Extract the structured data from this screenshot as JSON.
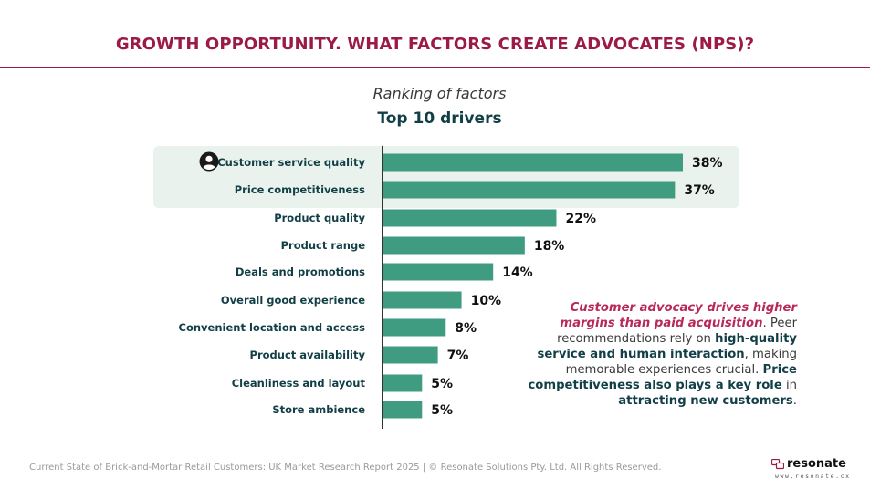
{
  "header": {
    "title": "GROWTH OPPORTUNITY. WHAT FACTORS CREATE ADVOCATES (NPS)?"
  },
  "chart_data": {
    "type": "bar",
    "orientation": "horizontal",
    "subtitle": "Ranking of factors",
    "title": "Top 10 drivers",
    "categories": [
      "Customer service quality",
      "Price competitiveness",
      "Product quality",
      "Product range",
      "Deals and promotions",
      "Overall good experience",
      "Convenient location and access",
      "Product availability",
      "Cleanliness and layout",
      "Store ambience"
    ],
    "values": [
      38,
      37,
      22,
      18,
      14,
      10,
      8,
      7,
      5,
      5
    ],
    "value_labels": [
      "38%",
      "37%",
      "22%",
      "18%",
      "14%",
      "10%",
      "8%",
      "7%",
      "5%",
      "5%"
    ],
    "unit": "%",
    "xlim": [
      0,
      38
    ],
    "highlighted_categories": [
      "Customer service quality",
      "Price competitiveness"
    ],
    "bar_color": "#3f9c80",
    "highlight_color": "#e9f2ec",
    "icon": "person-icon",
    "grid": false,
    "legend": "none"
  },
  "callout": {
    "emphasis": "Customer advocacy drives higher margins than paid acquisition",
    "t1": ". Peer recommendations ",
    "t2": "rely on ",
    "b2": "high-quality service and human interaction",
    "t3": ", making memorable experiences crucial. ",
    "b3": "Price competitiveness also plays a key role",
    "t4": " in ",
    "b4": "attracting new customers",
    "t5": "."
  },
  "footer": {
    "text": "Current State of Brick-and-Mortar Retail Customers: UK Market Research Report 2025 | © Resonate Solutions Pty. Ltd. All Rights Reserved.",
    "brand_name": "resonate",
    "brand_url": "www.resonate.cx",
    "brand_logo": "chat-bubbles-logo-icon"
  },
  "colors": {
    "title": "#9b1b45",
    "heading": "#123f47",
    "accent_text": "#b8285a"
  }
}
